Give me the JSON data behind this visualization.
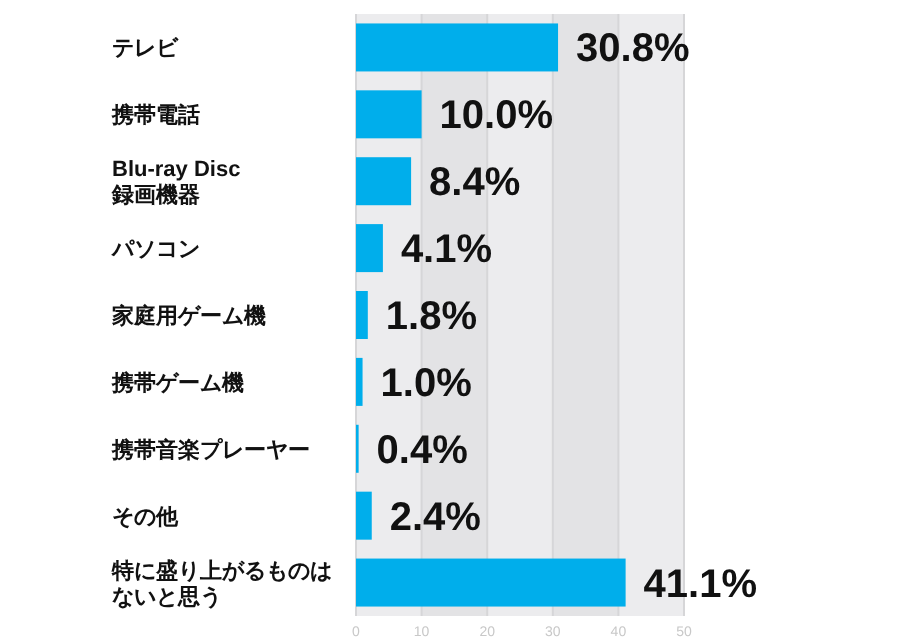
{
  "chart_data": {
    "type": "bar",
    "orientation": "horizontal",
    "categories": [
      "テレビ",
      "携帯電話",
      "Blu-ray Disc\n録画機器",
      "パソコン",
      "家庭用ゲーム機",
      "携帯ゲーム機",
      "携帯音楽プレーヤー",
      "その他",
      "特に盛り上がるものはないと思う"
    ],
    "values": [
      30.8,
      10.0,
      8.4,
      4.1,
      1.8,
      1.0,
      0.4,
      2.4,
      41.1
    ],
    "value_labels": [
      "30.8%",
      "10.0%",
      "8.4%",
      "4.1%",
      "1.8%",
      "1.0%",
      "0.4%",
      "2.4%",
      "41.1%"
    ],
    "color": "#00aeeb",
    "xlim": [
      0,
      50
    ],
    "xticks": [
      0,
      10,
      20,
      30,
      40,
      50
    ],
    "grid": "x"
  }
}
